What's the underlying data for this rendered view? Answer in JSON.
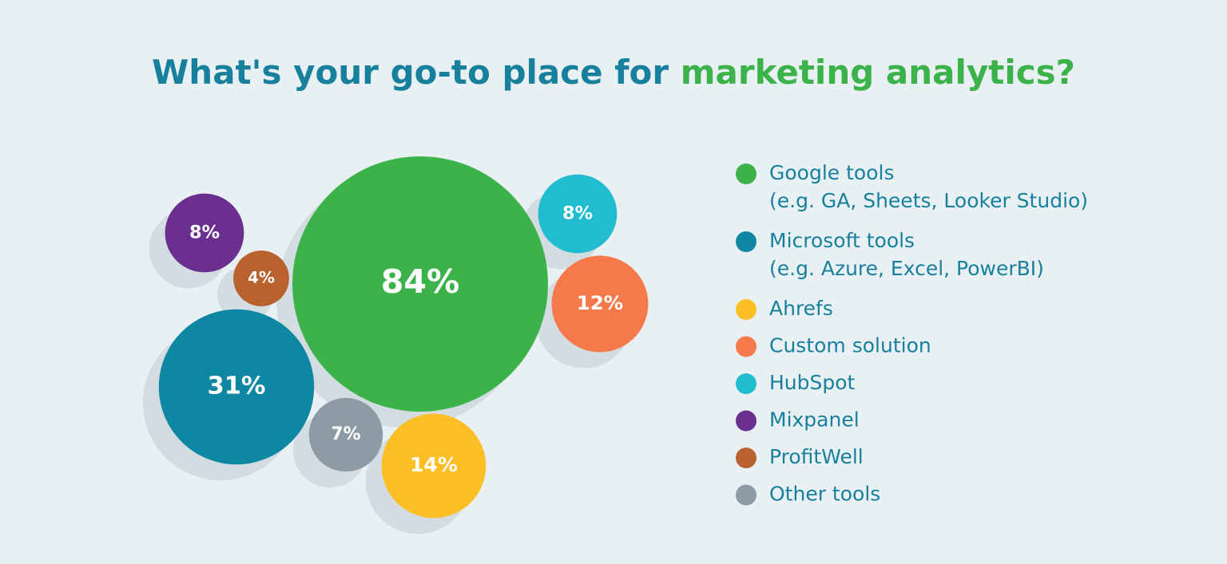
{
  "chart_data": {
    "type": "packed-bubble",
    "title": [
      "What's your go-to place for",
      "marketing analytics?"
    ],
    "title_colors": [
      "#17809c",
      "#3cb34a"
    ],
    "categories": [
      "Google tools",
      "Microsoft tools",
      "Ahrefs",
      "Custom solution",
      "HubSpot",
      "Mixpanel",
      "ProfitWell",
      "Other tools"
    ],
    "descriptions": [
      "(e.g. GA, Sheets, Looker Studio)",
      "(e.g. Azure, Excel, PowerBI)",
      null,
      null,
      null,
      null,
      null,
      null
    ],
    "values": [
      84,
      31,
      14,
      12,
      8,
      8,
      4,
      7
    ],
    "value_labels": [
      "84%",
      "31%",
      "14%",
      "12%",
      "8%",
      "8%",
      "4%",
      "7%"
    ],
    "colors": [
      "#3cb34a",
      "#0e87a3",
      "#fbbf24",
      "#f5794a",
      "#22bcd0",
      "#6a2f8f",
      "#b9622e",
      "#8c9ba4"
    ],
    "legend": "right"
  }
}
